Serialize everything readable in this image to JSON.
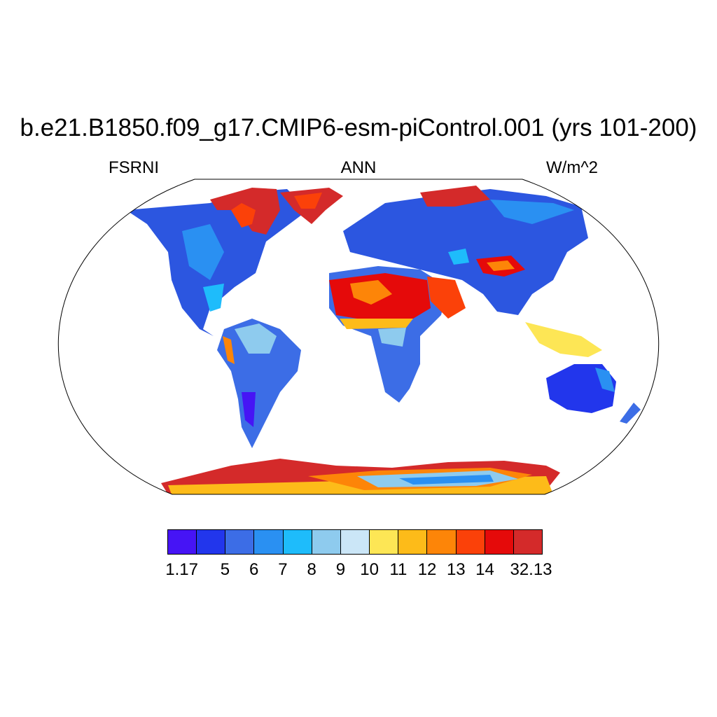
{
  "title": "b.e21.B1850.f09_g17.CMIP6-esm-piControl.001 (yrs 101-200)",
  "subtitle_left": "FSRNI",
  "subtitle_center": "ANN",
  "subtitle_right": "W/m^2",
  "projection": "Robinson",
  "colorbar": {
    "colors": [
      "#4614f5",
      "#2236ec",
      "#3c6de6",
      "#2a90f2",
      "#1ebcfb",
      "#8ecbee",
      "#cbe6f7",
      "#fde655",
      "#fdbb19",
      "#fd8508",
      "#fb4109",
      "#e50a0a",
      "#d42a2a"
    ],
    "labels": [
      "1.17",
      "5",
      "6",
      "7",
      "8",
      "9",
      "10",
      "11",
      "12",
      "13",
      "14",
      "32.13"
    ]
  }
}
